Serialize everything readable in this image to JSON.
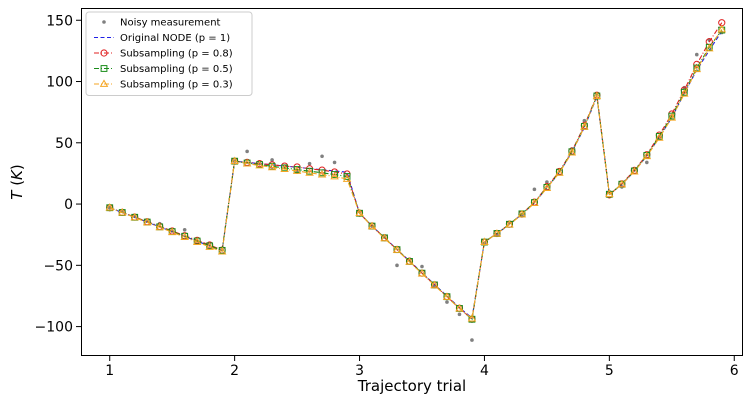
{
  "chart_data": {
    "type": "line",
    "title": "",
    "xlabel": "Trajectory trial",
    "ylabel": "T (K)",
    "xlim": [
      0.77,
      6.07
    ],
    "ylim": [
      -124,
      160
    ],
    "x_ticks": [
      1,
      2,
      3,
      4,
      5,
      6
    ],
    "y_ticks": [
      -100,
      -50,
      0,
      50,
      100,
      150
    ],
    "grid": false,
    "legend_position": "top-left",
    "x": [
      1.0,
      1.1,
      1.2,
      1.3,
      1.4,
      1.5,
      1.6,
      1.7,
      1.8,
      1.9,
      2.0,
      2.1,
      2.2,
      2.3,
      2.4,
      2.5,
      2.6,
      2.7,
      2.8,
      2.9,
      3.0,
      3.1,
      3.2,
      3.3,
      3.4,
      3.5,
      3.6,
      3.7,
      3.8,
      3.9,
      4.0,
      4.1,
      4.2,
      4.3,
      4.4,
      4.5,
      4.6,
      4.7,
      4.8,
      4.9,
      5.0,
      5.1,
      5.2,
      5.3,
      5.4,
      5.5,
      5.6,
      5.7,
      5.8,
      5.9
    ],
    "series": [
      {
        "name": "Noisy measurement",
        "color": "#808080",
        "style": "dots",
        "values": [
          -3,
          -6,
          -10,
          -14,
          -16,
          -22,
          -21,
          -30,
          -33,
          -37,
          35,
          43,
          33,
          36,
          31,
          26,
          33,
          39,
          34,
          23,
          -6,
          -18,
          -27,
          -50,
          -45,
          -51,
          -67,
          -80,
          -90,
          -111,
          -32,
          -25,
          -15,
          -9,
          12,
          18,
          28,
          45,
          68,
          90,
          10,
          14,
          28,
          34,
          55,
          72,
          95,
          122,
          134,
          140
        ]
      },
      {
        "name": "Original NODE (p = 1)",
        "color": "#1f1fe6",
        "style": "dashed",
        "values": [
          -3,
          -6.9,
          -10.8,
          -14.7,
          -18.6,
          -22.5,
          -26.4,
          -30.3,
          -34.2,
          -38.1,
          35,
          34,
          33,
          32,
          31,
          30,
          29,
          28,
          27,
          26,
          -7.5,
          -17.9,
          -27.4,
          -37.0,
          -46.5,
          -56.0,
          -65.6,
          -75.1,
          -84.6,
          -93.0,
          -31,
          -24,
          -16.8,
          -8.4,
          0.9,
          13.3,
          25.7,
          42.3,
          62.5,
          87.6,
          8,
          16,
          26.7,
          39.2,
          54.5,
          70.5,
          90.3,
          109.3,
          125.5,
          141
        ]
      },
      {
        "name": "Subsampling (p = 0.8)",
        "color": "#e02020",
        "style": "dashdot-circle",
        "values": [
          -3,
          -6.8,
          -10.6,
          -14.4,
          -18.2,
          -22.0,
          -25.8,
          -29.6,
          -33.4,
          -37.6,
          35,
          34,
          33,
          32,
          31,
          30.3,
          28.8,
          27.7,
          26.2,
          24.5,
          -7.5,
          -17.9,
          -27.5,
          -37.1,
          -46.7,
          -56.4,
          -65.9,
          -75.5,
          -85,
          -94,
          -31,
          -24,
          -16.4,
          -8.2,
          1.6,
          14.2,
          26.6,
          43.2,
          64.0,
          88.8,
          7.5,
          16.5,
          27.5,
          40.3,
          56.3,
          73.5,
          93.0,
          114.0,
          132.5,
          148
        ]
      },
      {
        "name": "Subsampling (p = 0.5)",
        "color": "#1a8c1a",
        "style": "dashdot-square",
        "values": [
          -3,
          -6.9,
          -10.8,
          -14.7,
          -18.6,
          -22.5,
          -26.3,
          -30.2,
          -34.1,
          -37.8,
          35,
          33.5,
          32.2,
          30.8,
          29.5,
          28.2,
          26.8,
          25.5,
          24.1,
          22.5,
          -7.5,
          -18.0,
          -27.6,
          -37.2,
          -46.8,
          -56.4,
          -66.0,
          -75.6,
          -85.2,
          -94,
          -31,
          -24,
          -16.5,
          -8.0,
          1.2,
          13.6,
          26.0,
          42.7,
          63.4,
          88.2,
          8,
          16.2,
          27.0,
          39.7,
          55.2,
          71.8,
          91.2,
          111.0,
          128.0,
          142
        ]
      },
      {
        "name": "Subsampling (p = 0.3)",
        "color": "#f5a623",
        "style": "dashdot-triangle",
        "values": [
          -3,
          -7.0,
          -11.0,
          -15.0,
          -19.0,
          -23.0,
          -27.0,
          -31.0,
          -35.0,
          -38.8,
          35,
          33,
          31.5,
          30,
          28.5,
          27,
          25.5,
          24,
          22.5,
          20.5,
          -7.5,
          -18.2,
          -28.0,
          -37.5,
          -47.2,
          -56.8,
          -66.3,
          -75.8,
          -85.3,
          -93.5,
          -31,
          -24.2,
          -16.8,
          -8.5,
          0.8,
          13.0,
          25.5,
          42.0,
          63.0,
          88.0,
          8,
          16.0,
          26.5,
          39.0,
          54.0,
          70.5,
          90.0,
          110.0,
          127.0,
          142.5
        ]
      }
    ]
  }
}
